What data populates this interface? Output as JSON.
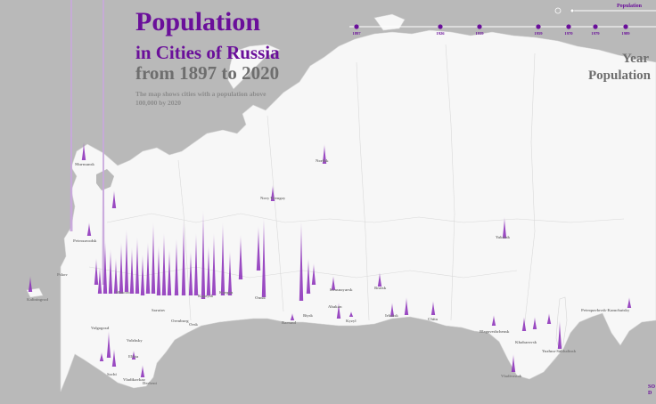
{
  "title": {
    "line1": "Population",
    "line2": "in Cities of Russia",
    "line3": "from 1897 to 2020",
    "subtitle": "The map shows cities with a population above 100,000 by 2020"
  },
  "legend": {
    "year_label": "Year",
    "population_label": "Population"
  },
  "population_slider": {
    "label": "Population"
  },
  "timeline": {
    "years": [
      "1897",
      "1926",
      "1939",
      "1959",
      "1970",
      "1979",
      "1989"
    ]
  },
  "corner": {
    "line1": "SO",
    "line2": "D"
  },
  "cities": [
    {
      "name": "Murmansk"
    },
    {
      "name": "Petrozavodsk"
    },
    {
      "name": "Pskov"
    },
    {
      "name": "Kaliningrad"
    },
    {
      "name": "Moscow"
    },
    {
      "name": "Saratov"
    },
    {
      "name": "Orenburg"
    },
    {
      "name": "Orsk"
    },
    {
      "name": "Volgograd"
    },
    {
      "name": "Kopeysk"
    },
    {
      "name": "Kurgan"
    },
    {
      "name": "Omsk"
    },
    {
      "name": "Volzhsky"
    },
    {
      "name": "Elista"
    },
    {
      "name": "Sochi"
    },
    {
      "name": "Vladikavkaz"
    },
    {
      "name": "Derbent"
    },
    {
      "name": "Norilsk"
    },
    {
      "name": "Novy Urengoy"
    },
    {
      "name": "Krasnoyarsk"
    },
    {
      "name": "Bratsk"
    },
    {
      "name": "Biysk"
    },
    {
      "name": "Abakan"
    },
    {
      "name": "Barnaul"
    },
    {
      "name": "Kyzyl"
    },
    {
      "name": "Irkutsk"
    },
    {
      "name": "Chita"
    },
    {
      "name": "Yakutsk"
    },
    {
      "name": "Blagoveshchensk"
    },
    {
      "name": "Khabarovsk"
    },
    {
      "name": "Yuzhno-Sakhalinsk"
    },
    {
      "name": "Vladivostok"
    },
    {
      "name": "Petropavlovsk-Kamchatsky"
    }
  ]
}
